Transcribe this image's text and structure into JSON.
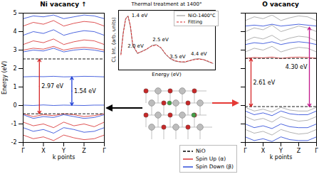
{
  "chart_data": [
    {
      "type": "line",
      "title": "Ni vacancy ↑",
      "xlabel": "k points",
      "ylabel": "Energy (eV)",
      "x": [
        0,
        0.5,
        1,
        1.5,
        2,
        2.5,
        3,
        3.5,
        4
      ],
      "xlim": [
        0,
        4
      ],
      "xticks": [
        {
          "value": 0,
          "label": "Γ"
        },
        {
          "value": 1,
          "label": "X"
        },
        {
          "value": 2,
          "label": "Y"
        },
        {
          "value": 3,
          "label": "Z"
        },
        {
          "value": 4,
          "label": "Γ"
        }
      ],
      "ylim": [
        -2,
        5
      ],
      "yticks": [
        -2,
        -1,
        0,
        1,
        2,
        3,
        4,
        5
      ],
      "series": [
        {
          "name": "Spin Up (α)",
          "color": "#d62728",
          "values": [
            -0.45,
            -0.6,
            -0.5,
            -0.55,
            -0.45,
            -0.5,
            -0.6,
            -0.55,
            -0.45
          ]
        },
        {
          "name": "Spin Down (β)",
          "color": "#1f3fd6",
          "values": [
            -0.5,
            -0.7,
            -0.6,
            -0.65,
            -0.5,
            -0.6,
            -0.7,
            -0.65,
            -0.5
          ]
        },
        {
          "name": "Spin Up (α)",
          "color": "#d62728",
          "values": [
            -0.9,
            -1.1,
            -1.0,
            -1.2,
            -0.9,
            -1.1,
            -1.0,
            -1.15,
            -0.9
          ]
        },
        {
          "name": "Spin Down (β)",
          "color": "#1f3fd6",
          "values": [
            -1.2,
            -1.4,
            -1.3,
            -1.5,
            -1.2,
            -1.3,
            -1.45,
            -1.4,
            -1.2
          ]
        },
        {
          "name": "Spin Up (α)",
          "color": "#d62728",
          "values": [
            -1.6,
            -1.8,
            -1.7,
            -1.9,
            -1.6,
            -1.75,
            -1.85,
            -1.8,
            -1.6
          ]
        },
        {
          "name": "Spin Down (β)",
          "color": "#1f3fd6",
          "values": [
            0.02,
            0.0,
            0.03,
            0.0,
            0.02,
            0.01,
            0.0,
            0.02,
            0.02
          ]
        },
        {
          "name": "Spin Down (β)",
          "color": "#1f3fd6",
          "values": [
            1.55,
            1.57,
            1.56,
            1.58,
            1.55,
            1.56,
            1.58,
            1.57,
            1.55
          ]
        },
        {
          "name": "Spin Up (α)",
          "color": "#d62728",
          "values": [
            3.0,
            3.1,
            3.05,
            3.2,
            3.0,
            3.1,
            3.15,
            3.1,
            3.0
          ]
        },
        {
          "name": "Spin Down (β)",
          "color": "#1f3fd6",
          "values": [
            2.9,
            3.0,
            2.95,
            3.1,
            2.9,
            3.0,
            3.05,
            3.0,
            2.9
          ]
        },
        {
          "name": "Spin Up (α)",
          "color": "#d62728",
          "values": [
            3.3,
            3.5,
            3.4,
            3.6,
            3.3,
            3.45,
            3.55,
            3.5,
            3.3
          ]
        },
        {
          "name": "Spin Down (β)",
          "color": "#1f3fd6",
          "values": [
            3.8,
            4.0,
            3.9,
            4.1,
            3.8,
            3.95,
            4.05,
            4.0,
            3.8
          ]
        },
        {
          "name": "Spin Up (α)",
          "color": "#d62728",
          "values": [
            4.3,
            4.5,
            4.4,
            4.6,
            4.3,
            4.45,
            4.55,
            4.5,
            4.3
          ]
        },
        {
          "name": "Spin Down (β)",
          "color": "#1f3fd6",
          "values": [
            4.7,
            4.85,
            4.8,
            4.9,
            4.7,
            4.8,
            4.9,
            4.85,
            4.7
          ]
        }
      ],
      "reference_lines": [
        {
          "name": "NiO",
          "value": 2.52,
          "color": "#000000",
          "line_style": "dashed"
        },
        {
          "name": "NiO",
          "value": -0.45,
          "color": "#000000",
          "line_style": "dashed"
        }
      ],
      "annotations": [
        {
          "text": "2.97 eV",
          "y1": -0.45,
          "y2": 2.52,
          "color": "#d62728"
        },
        {
          "text": "1.54 eV",
          "y1": 0.01,
          "y2": 1.55,
          "color": "#1f3fd6"
        }
      ]
    },
    {
      "type": "line",
      "title": "O vacancy",
      "xlabel": "k points",
      "tick_labels": "x",
      "x": [
        0,
        0.5,
        1,
        1.5,
        2,
        2.5,
        3,
        3.5,
        4
      ],
      "xlim": [
        0,
        4
      ],
      "xticks": [
        {
          "value": 0,
          "label": "Γ"
        },
        {
          "value": 1,
          "label": "X"
        },
        {
          "value": 2,
          "label": "Y"
        },
        {
          "value": 3,
          "label": "Z"
        },
        {
          "value": 4,
          "label": "Γ"
        }
      ],
      "ylim": [
        -2,
        5
      ],
      "yticks": [
        -2,
        -1,
        0,
        1,
        2,
        3,
        4,
        5
      ],
      "series": [
        {
          "color": "#9e9e9e",
          "values": [
            2.9,
            3.1,
            3.0,
            3.2,
            2.9,
            3.05,
            3.15,
            3.1,
            2.9
          ]
        },
        {
          "color": "#9e9e9e",
          "values": [
            3.5,
            3.7,
            3.6,
            3.8,
            3.5,
            3.65,
            3.75,
            3.7,
            3.5
          ]
        },
        {
          "color": "#9e9e9e",
          "values": [
            4.0,
            4.2,
            4.1,
            4.35,
            4.0,
            4.15,
            4.3,
            4.2,
            4.0
          ]
        },
        {
          "color": "#9e9e9e",
          "values": [
            4.6,
            4.8,
            4.7,
            4.9,
            4.6,
            4.75,
            4.85,
            4.8,
            4.6
          ]
        },
        {
          "name": "Spin Down (β)",
          "color": "#1f3fd6",
          "values": [
            4.3,
            4.35,
            4.3,
            4.4,
            4.3,
            4.35,
            4.4,
            4.35,
            4.3
          ]
        },
        {
          "name": "Spin Down (β)",
          "color": "#1f3fd6",
          "values": [
            3.3,
            3.4,
            3.35,
            3.45,
            3.3,
            3.4,
            3.45,
            3.4,
            3.3
          ]
        },
        {
          "name": "Spin Up (α)",
          "color": "#d62728",
          "values": [
            2.55,
            2.6,
            2.58,
            2.62,
            2.55,
            2.6,
            2.62,
            2.6,
            2.55
          ]
        },
        {
          "color": "#9e9e9e",
          "values": [
            -0.1,
            -0.3,
            -0.2,
            -0.35,
            -0.1,
            -0.25,
            -0.3,
            -0.3,
            -0.1
          ]
        },
        {
          "color": "#9e9e9e",
          "values": [
            -0.6,
            -0.8,
            -0.7,
            -0.9,
            -0.6,
            -0.75,
            -0.85,
            -0.8,
            -0.6
          ]
        },
        {
          "color": "#9e9e9e",
          "values": [
            -1.3,
            -1.5,
            -1.4,
            -1.6,
            -1.3,
            -1.45,
            -1.55,
            -1.5,
            -1.3
          ]
        },
        {
          "name": "Spin Down (β)",
          "color": "#1f3fd6",
          "values": [
            -0.3,
            -0.5,
            -0.4,
            -0.55,
            -0.3,
            -0.45,
            -0.5,
            -0.5,
            -0.3
          ]
        },
        {
          "name": "Spin Down (β)",
          "color": "#1f3fd6",
          "values": [
            -1.0,
            -1.2,
            -1.1,
            -1.25,
            -1.0,
            -1.15,
            -1.2,
            -1.2,
            -1.0
          ]
        },
        {
          "name": "Spin Down (β)",
          "color": "#1f3fd6",
          "values": [
            -1.7,
            -1.9,
            -1.8,
            -1.95,
            -1.7,
            -1.85,
            -1.9,
            -1.9,
            -1.7
          ]
        }
      ],
      "reference_lines": [
        {
          "name": "NiO",
          "value": 2.55,
          "color": "#000000",
          "line_style": "dashed"
        },
        {
          "name": "NiO",
          "value": -0.06,
          "color": "#000000",
          "line_style": "dashed"
        }
      ],
      "annotations": [
        {
          "text": "2.61 eV",
          "y1": -0.06,
          "y2": 2.55,
          "color": "#d62728"
        },
        {
          "text": "4.30 eV",
          "y1": -0.06,
          "y2": 4.24,
          "color": "#c2188b"
        }
      ]
    },
    {
      "type": "line",
      "title": "Thermal treatment at 1400°",
      "xlabel": "Energy (eV)",
      "ylabel": "CL Int. (arb. units)",
      "tick_labels": false,
      "legend": "upper right",
      "x": [
        1.1,
        1.2,
        1.3,
        1.4,
        1.5,
        1.6,
        1.8,
        2.0,
        2.2,
        2.4,
        2.6,
        2.8,
        3.0,
        3.2,
        3.4,
        3.6,
        3.8,
        4.0,
        4.2,
        4.4,
        4.6,
        4.8,
        5.0
      ],
      "xlim": [
        1,
        5.1
      ],
      "ylim": [
        0,
        1.1
      ],
      "series": [
        {
          "name": "NiO-1400°C",
          "color": "#9e9e9e",
          "values": [
            0.3,
            0.7,
            0.95,
            1.0,
            0.8,
            0.45,
            0.3,
            0.35,
            0.38,
            0.45,
            0.47,
            0.4,
            0.28,
            0.2,
            0.16,
            0.15,
            0.14,
            0.17,
            0.2,
            0.21,
            0.19,
            0.15,
            0.12
          ]
        },
        {
          "name": "Fitting",
          "color": "#d62728",
          "line_style": "dashed",
          "values": [
            0.28,
            0.68,
            0.94,
            0.99,
            0.82,
            0.47,
            0.31,
            0.34,
            0.39,
            0.44,
            0.46,
            0.41,
            0.29,
            0.21,
            0.17,
            0.15,
            0.15,
            0.17,
            0.19,
            0.2,
            0.19,
            0.16,
            0.12
          ]
        }
      ],
      "annotations": [
        {
          "text": "1.4 eV",
          "x": 1.4,
          "y": 1.0
        },
        {
          "text": "2.0 eV",
          "x": 2.0,
          "y": 0.35
        },
        {
          "text": "2.5 eV",
          "x": 2.5,
          "y": 0.47
        },
        {
          "text": "3.5 eV",
          "x": 3.5,
          "y": 0.16
        },
        {
          "text": "4.4 eV",
          "x": 4.4,
          "y": 0.21
        }
      ]
    }
  ]
}
